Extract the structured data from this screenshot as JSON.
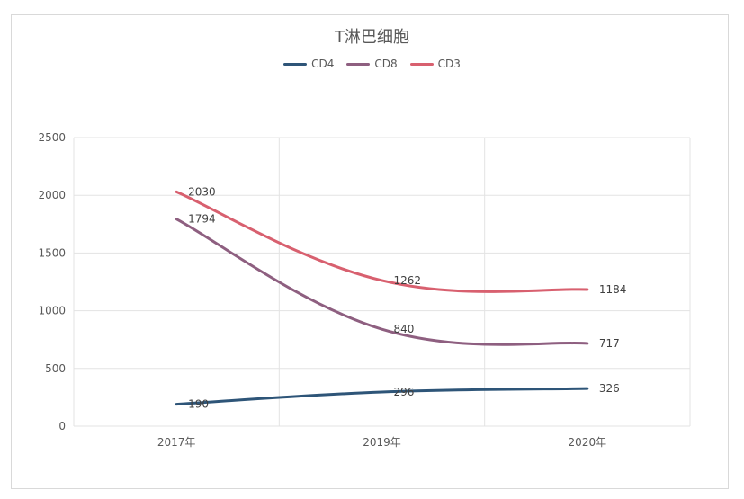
{
  "chart_data": {
    "type": "line",
    "title": "T淋巴细胞",
    "categories": [
      "2017年",
      "2019年",
      "2020年"
    ],
    "ylim": [
      0,
      2500
    ],
    "yticks": [
      0,
      500,
      1000,
      1500,
      2000,
      2500
    ],
    "grid": true,
    "legend_position": "top",
    "series": [
      {
        "name": "CD4",
        "color": "#2e5578",
        "values": [
          190,
          296,
          326
        ]
      },
      {
        "name": "CD8",
        "color": "#8e5f80",
        "values": [
          1794,
          840,
          717
        ]
      },
      {
        "name": "CD3",
        "color": "#d8606f",
        "values": [
          2030,
          1262,
          1184
        ]
      }
    ]
  }
}
